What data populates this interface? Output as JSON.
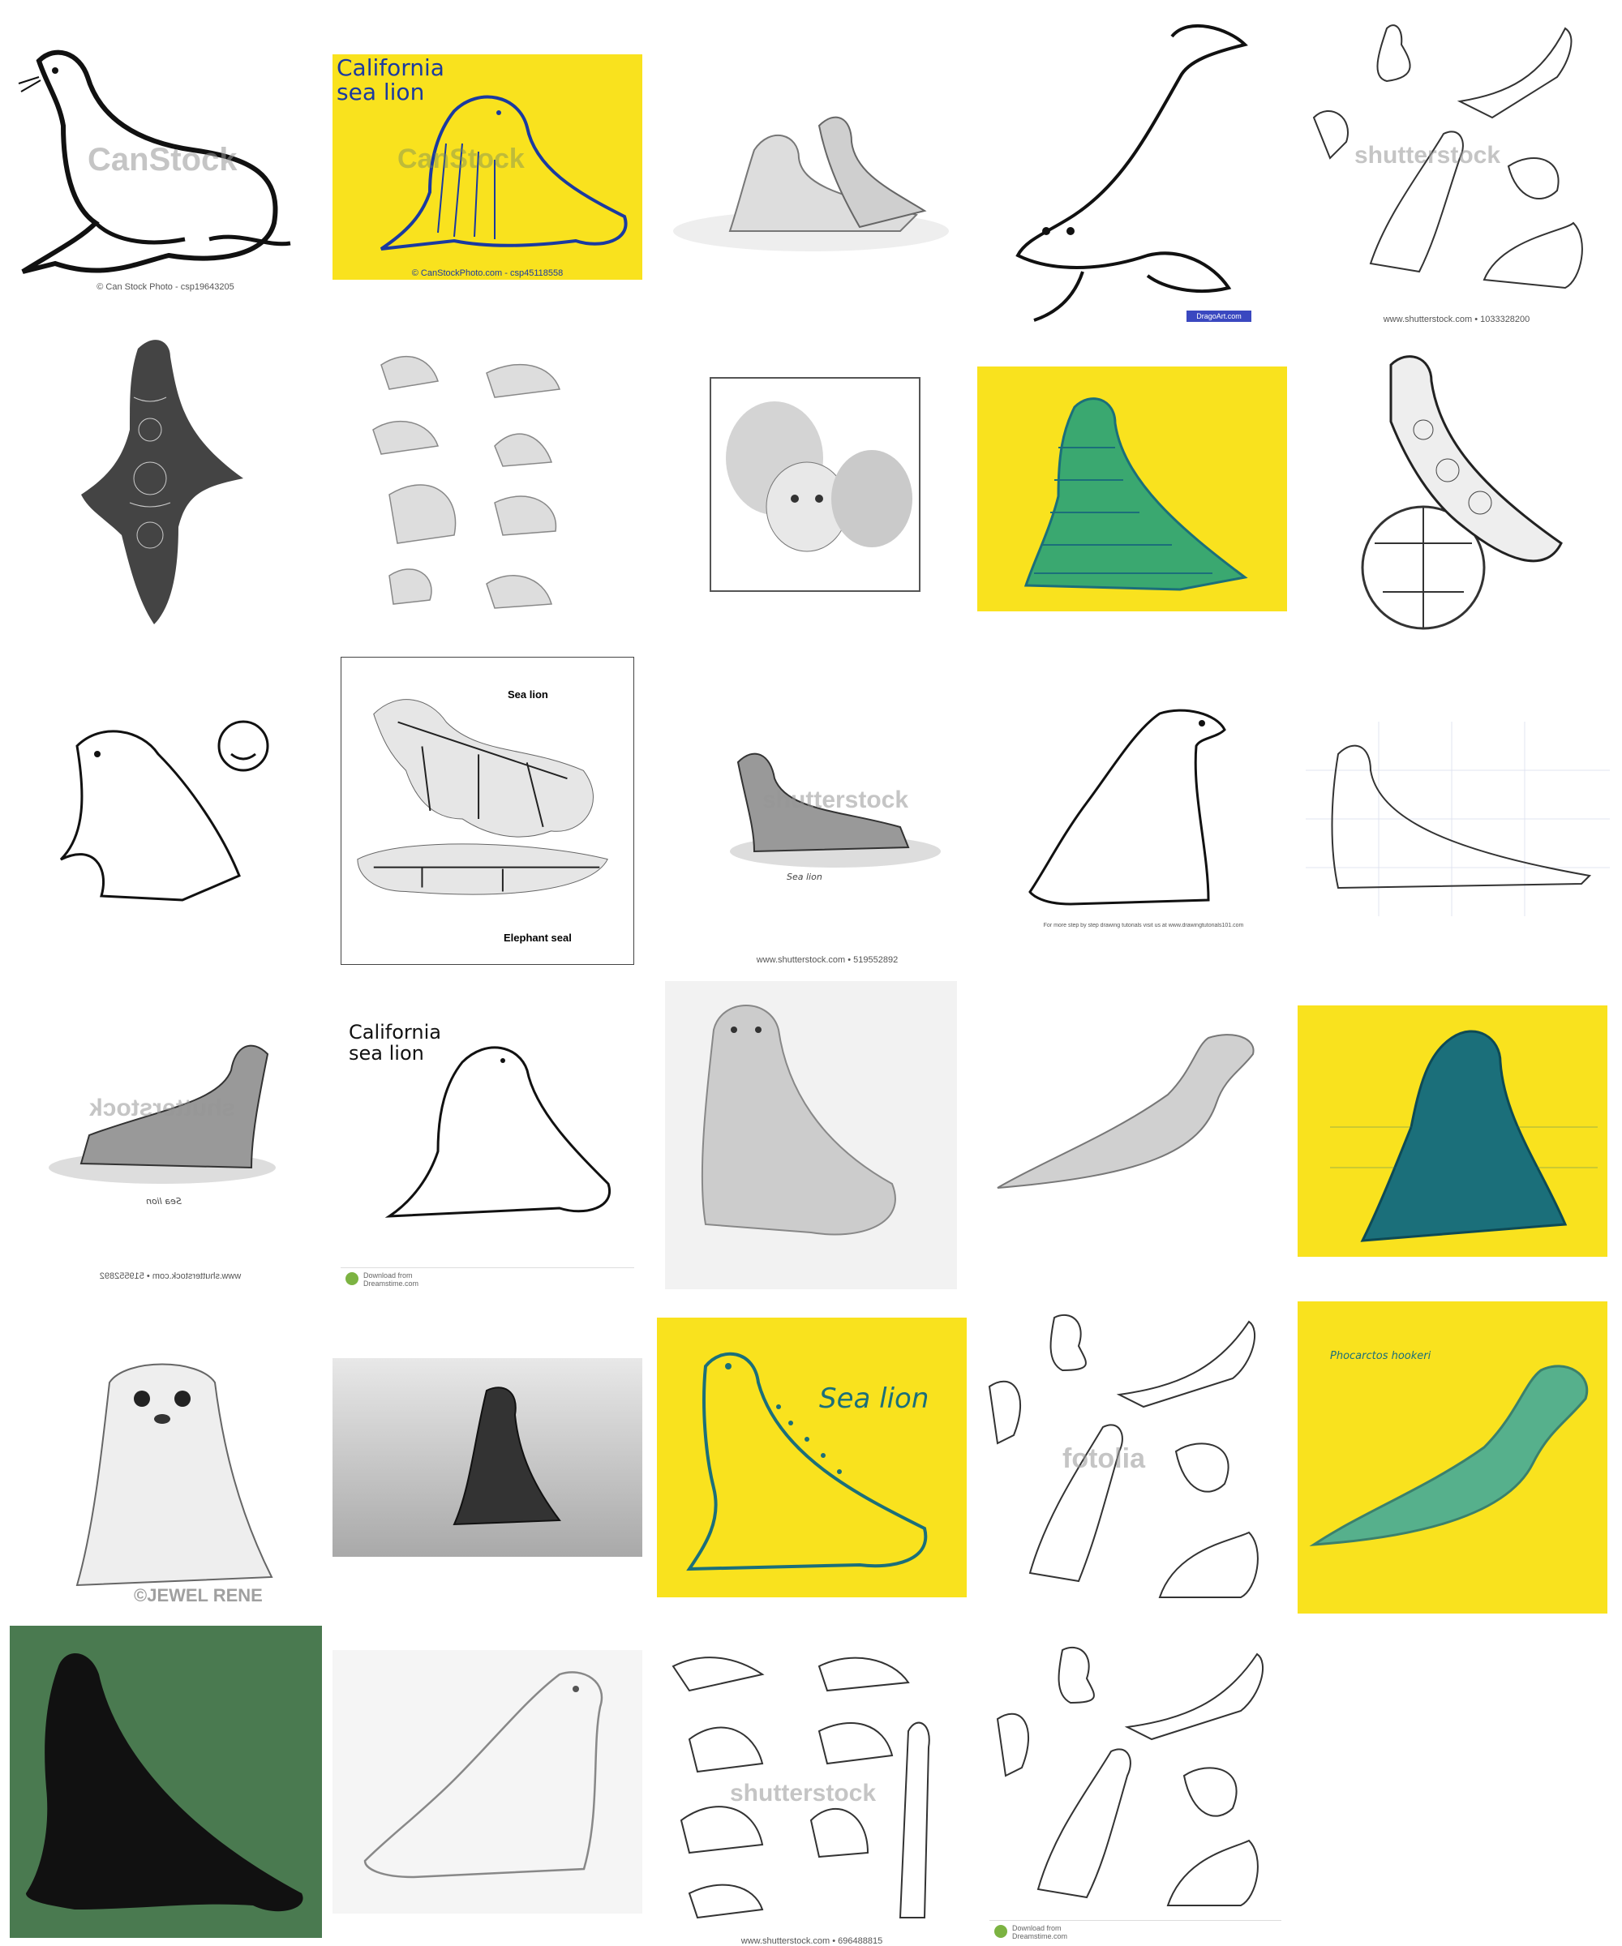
{
  "page": {
    "background": "#ffffff"
  },
  "colors": {
    "yellow": "#f9e21e",
    "teal": "#1b6f7a",
    "dark_green": "#4a7a50",
    "line": "#111111",
    "pencil": "#777777"
  },
  "tiles": [
    {
      "kind": "outline",
      "caption": "© Can Stock Photo - csp19643205",
      "watermark": "CanStock"
    },
    {
      "kind": "yellow",
      "title": "California\nsea lion",
      "caption": "© CanStockPhoto.com - csp45118558",
      "watermark": "CanStock"
    },
    {
      "kind": "pencil"
    },
    {
      "kind": "outline-pup",
      "badge": "DragoArt.com"
    },
    {
      "kind": "multi",
      "watermark": "shutterstock",
      "caption": "www.shutterstock.com • 1033328200"
    },
    {
      "kind": "mandala"
    },
    {
      "kind": "pencil-multi"
    },
    {
      "kind": "pencil-faces"
    },
    {
      "kind": "yellow-stripes"
    },
    {
      "kind": "zentangle-ball"
    },
    {
      "kind": "cartoon"
    },
    {
      "kind": "skeleton",
      "label_top": "Sea lion",
      "label_bottom": "Elephant seal"
    },
    {
      "kind": "stipple",
      "watermark": "shutterstock",
      "label": "Sea lion",
      "caption": "www.shutterstock.com • 519552892"
    },
    {
      "kind": "outline-tutorial",
      "caption": "For more step by step drawing tutorials visit us at www.drawingtutorials101.com"
    },
    {
      "kind": "grid-sketch"
    },
    {
      "kind": "stipple-mirror",
      "watermark": "shutterstock",
      "label": "Sea lion",
      "caption": "www.shutterstock.com • 519552892"
    },
    {
      "kind": "outline-title",
      "title": "California\nsea lion",
      "bar_l1": "Download from",
      "bar_l2": "Dreamstime.com"
    },
    {
      "kind": "pencil-front"
    },
    {
      "kind": "pencil-lying"
    },
    {
      "kind": "yellow-teal"
    },
    {
      "kind": "pup-pencil",
      "watermark": "©JEWEL RENE"
    },
    {
      "kind": "graphite-gray"
    },
    {
      "kind": "yellow-outline",
      "title": "Sea lion"
    },
    {
      "kind": "multi2",
      "watermark": "fotolia"
    },
    {
      "kind": "yellow-swim",
      "title": "Phocarctos hookeri"
    },
    {
      "kind": "silhouette"
    },
    {
      "kind": "soft-pencil"
    },
    {
      "kind": "multi3",
      "watermark": "shutterstock",
      "caption": "www.shutterstock.com • 696488815"
    },
    {
      "kind": "multi4",
      "bar_l1": "Download from",
      "bar_l2": "Dreamstime.com"
    }
  ]
}
